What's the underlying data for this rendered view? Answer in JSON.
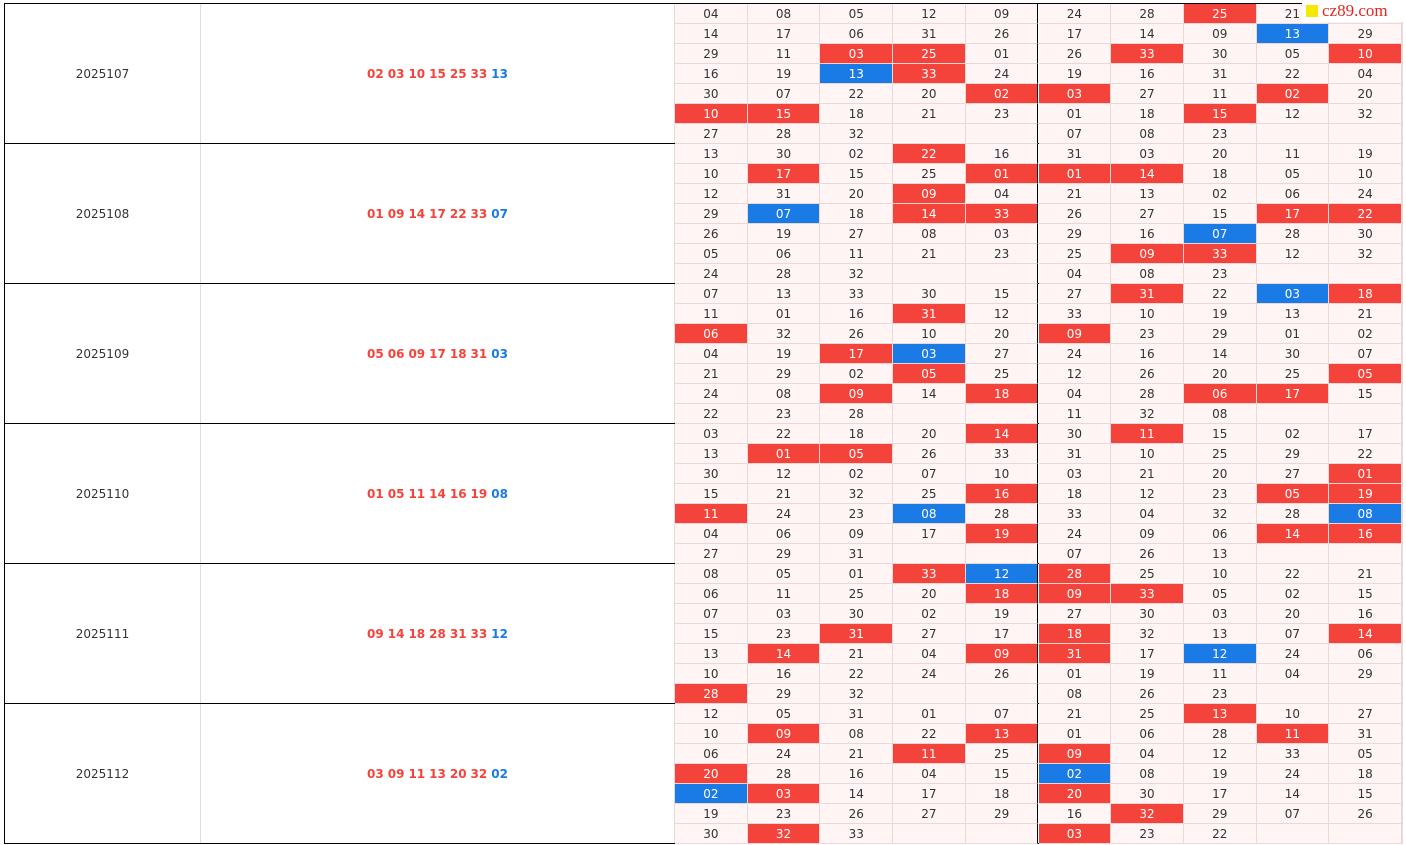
{
  "watermark": "cz89.com",
  "blocks": [
    {
      "period": "2025107",
      "reds": [
        "02",
        "03",
        "10",
        "15",
        "25",
        "33"
      ],
      "blue": "13",
      "rows": [
        [
          "04",
          "08",
          "05",
          "12",
          "09",
          "24",
          "28",
          "25",
          "21",
          null
        ],
        [
          "14",
          "17",
          "06",
          "31",
          "26",
          "17",
          "14",
          "09",
          "13",
          "29"
        ],
        [
          "29",
          "11",
          "03",
          "25",
          "01",
          "26",
          "33",
          "30",
          "05",
          "10"
        ],
        [
          "16",
          "19",
          "13",
          "33",
          "24",
          "19",
          "16",
          "31",
          "22",
          "04"
        ],
        [
          "30",
          "07",
          "22",
          "20",
          "02",
          "03",
          "27",
          "11",
          "02",
          "20"
        ],
        [
          "10",
          "15",
          "18",
          "21",
          "23",
          "01",
          "18",
          "15",
          "12",
          "32"
        ],
        [
          "27",
          "28",
          "32",
          null,
          null,
          "07",
          "08",
          "23",
          null,
          null
        ]
      ]
    },
    {
      "period": "2025108",
      "reds": [
        "01",
        "09",
        "14",
        "17",
        "22",
        "33"
      ],
      "blue": "07",
      "rows": [
        [
          "13",
          "30",
          "02",
          "22",
          "16",
          "31",
          "03",
          "20",
          "11",
          "19"
        ],
        [
          "10",
          "17",
          "15",
          "25",
          "01",
          "01",
          "14",
          "18",
          "05",
          "10"
        ],
        [
          "12",
          "31",
          "20",
          "09",
          "04",
          "21",
          "13",
          "02",
          "06",
          "24"
        ],
        [
          "29",
          "07",
          "18",
          "14",
          "33",
          "26",
          "27",
          "15",
          "17",
          "22"
        ],
        [
          "26",
          "19",
          "27",
          "08",
          "03",
          "29",
          "16",
          "07",
          "28",
          "30"
        ],
        [
          "05",
          "06",
          "11",
          "21",
          "23",
          "25",
          "09",
          "33",
          "12",
          "32"
        ],
        [
          "24",
          "28",
          "32",
          null,
          null,
          "04",
          "08",
          "23",
          null,
          null
        ]
      ]
    },
    {
      "period": "2025109",
      "reds": [
        "05",
        "06",
        "09",
        "17",
        "18",
        "31"
      ],
      "blue": "03",
      "rows": [
        [
          "07",
          "13",
          "33",
          "30",
          "15",
          "27",
          "31",
          "22",
          "03",
          "18"
        ],
        [
          "11",
          "01",
          "16",
          "31",
          "12",
          "33",
          "10",
          "19",
          "13",
          "21"
        ],
        [
          "06",
          "32",
          "26",
          "10",
          "20",
          "09",
          "23",
          "29",
          "01",
          "02"
        ],
        [
          "04",
          "19",
          "17",
          "03",
          "27",
          "24",
          "16",
          "14",
          "30",
          "07"
        ],
        [
          "21",
          "29",
          "02",
          "05",
          "25",
          "12",
          "26",
          "20",
          "25",
          "05"
        ],
        [
          "24",
          "08",
          "09",
          "14",
          "18",
          "04",
          "28",
          "06",
          "17",
          "15"
        ],
        [
          "22",
          "23",
          "28",
          null,
          null,
          "11",
          "32",
          "08",
          null,
          null
        ]
      ]
    },
    {
      "period": "2025110",
      "reds": [
        "01",
        "05",
        "11",
        "14",
        "16",
        "19"
      ],
      "blue": "08",
      "rows": [
        [
          "03",
          "22",
          "18",
          "20",
          "14",
          "30",
          "11",
          "15",
          "02",
          "17"
        ],
        [
          "13",
          "01",
          "05",
          "26",
          "33",
          "31",
          "10",
          "25",
          "29",
          "22"
        ],
        [
          "30",
          "12",
          "02",
          "07",
          "10",
          "03",
          "21",
          "20",
          "27",
          "01"
        ],
        [
          "15",
          "21",
          "32",
          "25",
          "16",
          "18",
          "12",
          "23",
          "05",
          "19"
        ],
        [
          "11",
          "24",
          "23",
          "08",
          "28",
          "33",
          "04",
          "32",
          "28",
          "08"
        ],
        [
          "04",
          "06",
          "09",
          "17",
          "19",
          "24",
          "09",
          "06",
          "14",
          "16"
        ],
        [
          "27",
          "29",
          "31",
          null,
          null,
          "07",
          "26",
          "13",
          null,
          null
        ]
      ]
    },
    {
      "period": "2025111",
      "reds": [
        "09",
        "14",
        "18",
        "28",
        "31",
        "33"
      ],
      "blue": "12",
      "rows": [
        [
          "08",
          "05",
          "01",
          "33",
          "12",
          "28",
          "25",
          "10",
          "22",
          "21"
        ],
        [
          "06",
          "11",
          "25",
          "20",
          "18",
          "09",
          "33",
          "05",
          "02",
          "15"
        ],
        [
          "07",
          "03",
          "30",
          "02",
          "19",
          "27",
          "30",
          "03",
          "20",
          "16"
        ],
        [
          "15",
          "23",
          "31",
          "27",
          "17",
          "18",
          "32",
          "13",
          "07",
          "14"
        ],
        [
          "13",
          "14",
          "21",
          "04",
          "09",
          "31",
          "17",
          "12",
          "24",
          "06"
        ],
        [
          "10",
          "16",
          "22",
          "24",
          "26",
          "01",
          "19",
          "11",
          "04",
          "29"
        ],
        [
          "28",
          "29",
          "32",
          null,
          null,
          "08",
          "26",
          "23",
          null,
          null
        ]
      ]
    },
    {
      "period": "2025112",
      "reds": [
        "03",
        "09",
        "11",
        "13",
        "20",
        "32"
      ],
      "blue": "02",
      "rows": [
        [
          "12",
          "05",
          "31",
          "01",
          "07",
          "21",
          "25",
          "13",
          "10",
          "27"
        ],
        [
          "10",
          "09",
          "08",
          "22",
          "13",
          "01",
          "06",
          "28",
          "11",
          "31"
        ],
        [
          "06",
          "24",
          "21",
          "11",
          "25",
          "09",
          "04",
          "12",
          "33",
          "05"
        ],
        [
          "20",
          "28",
          "16",
          "04",
          "15",
          "02",
          "08",
          "19",
          "24",
          "18"
        ],
        [
          "02",
          "03",
          "14",
          "17",
          "18",
          "20",
          "30",
          "17",
          "14",
          "15"
        ],
        [
          "19",
          "23",
          "26",
          "27",
          "29",
          "16",
          "32",
          "29",
          "07",
          "26"
        ],
        [
          "30",
          "32",
          "33",
          null,
          null,
          "03",
          "23",
          "22",
          null,
          null
        ]
      ]
    }
  ]
}
